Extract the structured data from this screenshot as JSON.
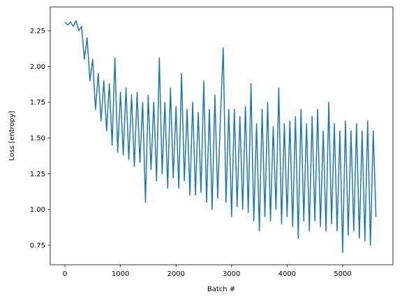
{
  "chart_data": {
    "type": "line",
    "xlabel": "Batch #",
    "ylabel": "Loss [entropy]",
    "x": [
      0,
      50,
      100,
      150,
      200,
      250,
      300,
      350,
      400,
      450,
      500,
      550,
      600,
      650,
      700,
      750,
      800,
      850,
      900,
      950,
      1000,
      1050,
      1100,
      1150,
      1200,
      1250,
      1300,
      1350,
      1400,
      1450,
      1500,
      1550,
      1600,
      1650,
      1700,
      1750,
      1800,
      1850,
      1900,
      1950,
      2000,
      2050,
      2100,
      2150,
      2200,
      2250,
      2300,
      2350,
      2400,
      2450,
      2500,
      2550,
      2600,
      2650,
      2700,
      2750,
      2800,
      2850,
      2900,
      2950,
      3000,
      3050,
      3100,
      3150,
      3200,
      3250,
      3300,
      3350,
      3400,
      3450,
      3500,
      3550,
      3600,
      3650,
      3700,
      3750,
      3800,
      3850,
      3900,
      3950,
      4000,
      4050,
      4100,
      4150,
      4200,
      4250,
      4300,
      4350,
      4400,
      4450,
      4500,
      4550,
      4600,
      4650,
      4700,
      4750,
      4800,
      4850,
      4900,
      4950,
      5000,
      5050,
      5100,
      5150,
      5200,
      5250,
      5300,
      5350,
      5400,
      5450,
      5500,
      5550,
      5600
    ],
    "series": [
      {
        "color": "#1f77b4",
        "values": [
          2.31,
          2.29,
          2.31,
          2.28,
          2.32,
          2.25,
          2.28,
          2.05,
          2.2,
          1.9,
          2.05,
          1.7,
          1.95,
          1.62,
          1.9,
          1.55,
          1.88,
          1.45,
          2.06,
          1.4,
          1.82,
          1.38,
          1.85,
          1.35,
          1.8,
          1.3,
          1.82,
          1.33,
          1.75,
          1.05,
          1.8,
          1.28,
          1.75,
          1.2,
          2.06,
          1.25,
          1.75,
          1.15,
          1.85,
          1.22,
          1.72,
          1.15,
          1.95,
          1.2,
          1.7,
          1.1,
          1.75,
          1.1,
          1.68,
          1.12,
          1.9,
          1.05,
          1.7,
          1.0,
          1.8,
          1.08,
          1.65,
          2.13,
          1.05,
          1.7,
          0.95,
          1.7,
          1.02,
          1.65,
          1.0,
          1.72,
          0.98,
          1.88,
          0.92,
          1.6,
          0.85,
          1.7,
          0.95,
          1.75,
          0.92,
          1.58,
          1.0,
          1.85,
          0.9,
          1.6,
          0.95,
          1.62,
          0.88,
          1.65,
          0.8,
          1.7,
          0.92,
          1.6,
          0.85,
          1.65,
          0.92,
          1.7,
          0.88,
          1.55,
          0.85,
          1.75,
          0.9,
          1.6,
          0.85,
          1.55,
          0.7,
          1.62,
          0.82,
          1.55,
          0.85,
          1.6,
          0.8,
          1.55,
          0.78,
          1.62,
          0.75,
          1.55,
          0.95
        ]
      }
    ],
    "xlim": [
      -264,
      5905
    ],
    "ylim": [
      0.614,
      2.416
    ],
    "xticks": [
      0,
      1000,
      2000,
      3000,
      4000,
      5000
    ],
    "yticks": [
      0.75,
      {
        "value": 1.0,
        "label": "1.00"
      },
      1.25,
      {
        "value": 1.5,
        "label": "1.50"
      },
      1.75,
      {
        "value": 2.0,
        "label": "2.00"
      },
      2.25
    ],
    "grid": false
  }
}
